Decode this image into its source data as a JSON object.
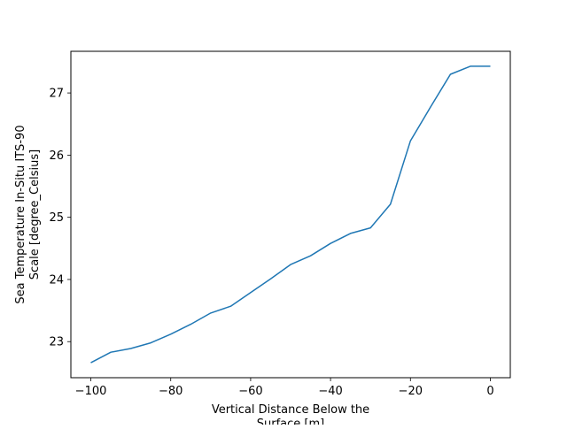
{
  "chart_data": {
    "type": "line",
    "title": "",
    "xlabel": "Vertical Distance Below the Surface [m]",
    "xlabel_lines": [
      "Vertical Distance Below the",
      "Surface [m]"
    ],
    "ylabel": "Sea Temperature In-Situ ITS-90 Scale [degree_Celsius]",
    "ylabel_lines": [
      "Sea Temperature In-Situ ITS-90",
      "Scale [degree_Celsius]"
    ],
    "xlim": [
      -105,
      5
    ],
    "ylim": [
      22.42,
      27.67
    ],
    "xticks": [
      -100,
      -80,
      -60,
      -40,
      -20,
      0
    ],
    "xtick_labels": [
      "−100",
      "−80",
      "−60",
      "−40",
      "−20",
      "0"
    ],
    "yticks": [
      23,
      24,
      25,
      26,
      27
    ],
    "ytick_labels": [
      "23",
      "24",
      "25",
      "26",
      "27"
    ],
    "grid": false,
    "series": [
      {
        "color": "#1f77b4",
        "x": [
          -100,
          -95,
          -90,
          -85,
          -80,
          -75,
          -70,
          -65,
          -60,
          -55,
          -50,
          -45,
          -40,
          -35,
          -30,
          -25,
          -20,
          -15,
          -10,
          -5,
          0
        ],
        "y": [
          22.66,
          22.83,
          22.89,
          22.98,
          23.12,
          23.28,
          23.46,
          23.57,
          23.79,
          24.01,
          24.24,
          24.38,
          24.58,
          24.74,
          24.83,
          25.21,
          26.23,
          26.77,
          27.3,
          27.43,
          27.43
        ]
      }
    ]
  }
}
